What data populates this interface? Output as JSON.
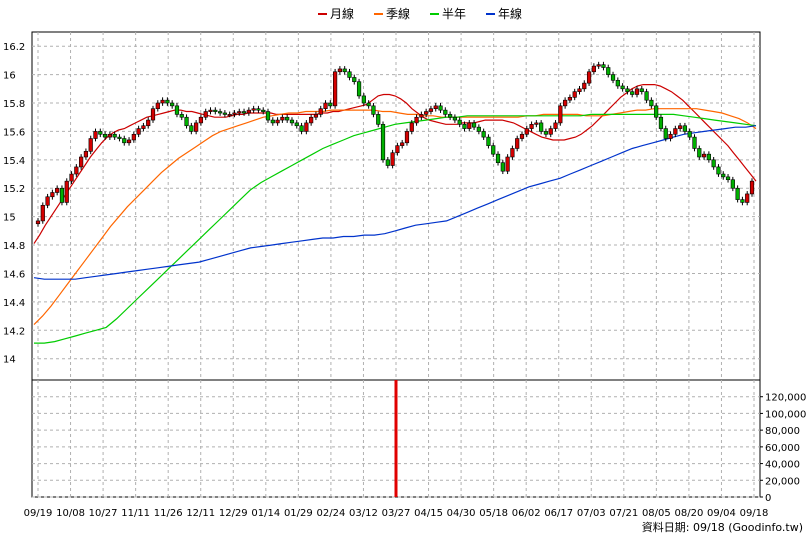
{
  "chart_data": {
    "type": "candlestick",
    "legend": [
      {
        "label": "月線",
        "color": "#cc0000"
      },
      {
        "label": "季線",
        "color": "#ff6600"
      },
      {
        "label": "半年",
        "color": "#00cc00"
      },
      {
        "label": "年線",
        "color": "#0033cc"
      }
    ],
    "x_tick_labels": [
      "09/19",
      "10/08",
      "10/27",
      "11/11",
      "11/26",
      "12/11",
      "12/29",
      "01/14",
      "01/29",
      "02/24",
      "03/12",
      "03/27",
      "04/15",
      "04/30",
      "05/18",
      "06/02",
      "06/17",
      "07/03",
      "07/21",
      "08/05",
      "08/20",
      "09/04",
      "09/18"
    ],
    "price_axis": {
      "ylim": [
        13.85,
        16.3
      ],
      "ticks": [
        14,
        14.2,
        14.4,
        14.6,
        14.8,
        15,
        15.2,
        15.4,
        15.6,
        15.8,
        16,
        16.2
      ]
    },
    "volume_axis": {
      "ylim": [
        0,
        140000
      ],
      "ticks": [
        "0",
        "20,000",
        "40,000",
        "60,000",
        "80,000",
        "100,000",
        "120,000"
      ]
    },
    "price_close": [
      14.97,
      15.08,
      15.14,
      15.17,
      15.2,
      15.1,
      15.25,
      15.3,
      15.35,
      15.42,
      15.46,
      15.55,
      15.6,
      15.58,
      15.56,
      15.58,
      15.56,
      15.55,
      15.52,
      15.54,
      15.58,
      15.62,
      15.64,
      15.68,
      15.76,
      15.8,
      15.82,
      15.8,
      15.78,
      15.72,
      15.7,
      15.64,
      15.6,
      15.66,
      15.7,
      15.74,
      15.75,
      15.74,
      15.73,
      15.72,
      15.72,
      15.73,
      15.74,
      15.73,
      15.75,
      15.76,
      15.75,
      15.74,
      15.68,
      15.66,
      15.68,
      15.7,
      15.68,
      15.66,
      15.64,
      15.6,
      15.66,
      15.7,
      15.72,
      15.76,
      15.8,
      15.78,
      16.02,
      16.04,
      16.02,
      15.98,
      15.95,
      15.85,
      15.8,
      15.78,
      15.72,
      15.65,
      15.4,
      15.36,
      15.45,
      15.5,
      15.52,
      15.6,
      15.66,
      15.7,
      15.72,
      15.74,
      15.76,
      15.78,
      15.75,
      15.72,
      15.7,
      15.68,
      15.65,
      15.62,
      15.66,
      15.63,
      15.6,
      15.56,
      15.5,
      15.44,
      15.38,
      15.32,
      15.42,
      15.48,
      15.55,
      15.58,
      15.62,
      15.65,
      15.66,
      15.6,
      15.58,
      15.62,
      15.66,
      15.78,
      15.82,
      15.84,
      15.88,
      15.9,
      15.94,
      16.02,
      16.06,
      16.07,
      16.05,
      16.0,
      15.96,
      15.92,
      15.9,
      15.88,
      15.86,
      15.9,
      15.88,
      15.82,
      15.78,
      15.7,
      15.62,
      15.55,
      15.58,
      15.62,
      15.64,
      15.6,
      15.56,
      15.48,
      15.42,
      15.44,
      15.4,
      15.35,
      15.3,
      15.28,
      15.26,
      15.2,
      15.12,
      15.1,
      15.16,
      15.25
    ],
    "series": [
      {
        "name": "月線",
        "color": "#cc0000",
        "values": [
          14.81,
          14.87,
          14.94,
          15.0,
          15.06,
          15.12,
          15.18,
          15.24,
          15.3,
          15.36,
          15.42,
          15.47,
          15.52,
          15.56,
          15.59,
          15.61,
          15.62,
          15.64,
          15.66,
          15.68,
          15.7,
          15.71,
          15.72,
          15.73,
          15.74,
          15.75,
          15.75,
          15.74,
          15.74,
          15.73,
          15.72,
          15.71,
          15.7,
          15.7,
          15.7,
          15.71,
          15.72,
          15.72,
          15.73,
          15.73,
          15.73,
          15.73,
          15.73,
          15.72,
          15.72,
          15.72,
          15.72,
          15.72,
          15.72,
          15.72,
          15.72,
          15.73,
          15.73,
          15.74,
          15.74,
          15.75,
          15.76,
          15.77,
          15.78,
          15.79,
          15.82,
          15.85,
          15.86,
          15.86,
          15.85,
          15.83,
          15.8,
          15.76,
          15.73,
          15.7,
          15.68,
          15.67,
          15.66,
          15.65,
          15.65,
          15.65,
          15.66,
          15.66,
          15.66,
          15.67,
          15.68,
          15.68,
          15.68,
          15.68,
          15.67,
          15.66,
          15.64,
          15.62,
          15.6,
          15.58,
          15.56,
          15.55,
          15.54,
          15.54,
          15.54,
          15.55,
          15.56,
          15.58,
          15.61,
          15.64,
          15.68,
          15.72,
          15.76,
          15.8,
          15.84,
          15.87,
          15.9,
          15.92,
          15.93,
          15.93,
          15.93,
          15.92,
          15.9,
          15.88,
          15.85,
          15.82,
          15.78,
          15.74,
          15.7,
          15.66,
          15.62,
          15.58,
          15.54,
          15.5,
          15.45,
          15.4,
          15.35,
          15.3,
          15.25
        ]
      },
      {
        "name": "季線",
        "color": "#ff6600",
        "values": [
          14.24,
          14.3,
          14.37,
          14.45,
          14.53,
          14.61,
          14.69,
          14.77,
          14.85,
          14.93,
          15.0,
          15.07,
          15.13,
          15.19,
          15.25,
          15.31,
          15.36,
          15.41,
          15.45,
          15.49,
          15.53,
          15.57,
          15.6,
          15.62,
          15.64,
          15.66,
          15.68,
          15.7,
          15.71,
          15.72,
          15.73,
          15.73,
          15.74,
          15.74,
          15.74,
          15.75,
          15.75,
          15.75,
          15.75,
          15.75,
          15.75,
          15.74,
          15.74,
          15.73,
          15.72,
          15.72,
          15.71,
          15.71,
          15.7,
          15.7,
          15.7,
          15.7,
          15.7,
          15.7,
          15.7,
          15.7,
          15.7,
          15.7,
          15.71,
          15.71,
          15.72,
          15.72,
          15.72,
          15.72,
          15.72,
          15.71,
          15.71,
          15.71,
          15.72,
          15.73,
          15.74,
          15.75,
          15.75,
          15.76,
          15.76,
          15.76,
          15.76,
          15.76,
          15.76,
          15.75,
          15.74,
          15.73,
          15.71,
          15.69,
          15.66,
          15.62
        ]
      },
      {
        "name": "半年",
        "color": "#00cc00",
        "values": [
          14.11,
          14.11,
          14.12,
          14.14,
          14.16,
          14.18,
          14.2,
          14.22,
          14.28,
          14.35,
          14.42,
          14.49,
          14.56,
          14.63,
          14.7,
          14.77,
          14.84,
          14.91,
          14.98,
          15.05,
          15.12,
          15.19,
          15.24,
          15.28,
          15.32,
          15.36,
          15.4,
          15.44,
          15.48,
          15.51,
          15.54,
          15.57,
          15.59,
          15.61,
          15.63,
          15.65,
          15.66,
          15.67,
          15.68,
          15.69,
          15.7,
          15.7,
          15.71,
          15.71,
          15.71,
          15.71,
          15.71,
          15.71,
          15.71,
          15.71,
          15.71,
          15.71,
          15.71,
          15.71,
          15.72,
          15.72,
          15.72,
          15.72,
          15.72,
          15.72,
          15.72,
          15.72,
          15.72,
          15.71,
          15.7,
          15.69,
          15.68,
          15.67,
          15.66,
          15.65,
          15.64
        ]
      },
      {
        "name": "年線",
        "color": "#0033cc",
        "values": [
          14.57,
          14.56,
          14.56,
          14.56,
          14.56,
          14.57,
          14.58,
          14.59,
          14.6,
          14.61,
          14.62,
          14.63,
          14.64,
          14.65,
          14.66,
          14.67,
          14.68,
          14.7,
          14.72,
          14.74,
          14.76,
          14.78,
          14.79,
          14.8,
          14.81,
          14.82,
          14.83,
          14.84,
          14.85,
          14.85,
          14.86,
          14.86,
          14.87,
          14.87,
          14.88,
          14.9,
          14.92,
          14.94,
          14.95,
          14.96,
          14.97,
          15.0,
          15.03,
          15.06,
          15.09,
          15.12,
          15.15,
          15.18,
          15.21,
          15.23,
          15.25,
          15.27,
          15.3,
          15.33,
          15.36,
          15.39,
          15.42,
          15.45,
          15.48,
          15.5,
          15.52,
          15.54,
          15.56,
          15.58,
          15.59,
          15.6,
          15.61,
          15.62,
          15.63,
          15.63,
          15.64
        ]
      }
    ],
    "volume_spike": {
      "x_label": "03/27",
      "value": 140000
    }
  },
  "source_label": "資料日期: 09/18  (Goodinfo.tw)"
}
